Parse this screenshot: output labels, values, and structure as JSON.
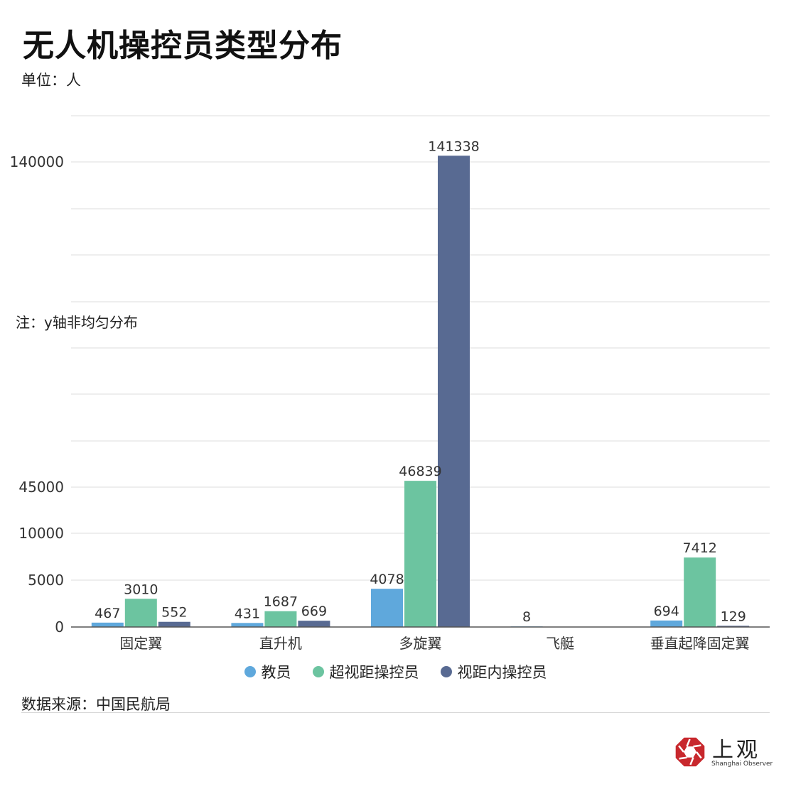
{
  "title": "无人机操控员类型分布",
  "unit": "单位：人",
  "note": "注：y轴非均匀分布",
  "source": "数据来源：中国民航局",
  "logo": {
    "name": "上观",
    "subtitle": "Shanghai Observer"
  },
  "colors": {
    "教员": "#5fa8dc",
    "超视距操控员": "#6cc4a0",
    "视距内操控员": "#586a92",
    "logo_red": "#c8282d"
  },
  "chart_data": {
    "type": "bar",
    "categories": [
      "固定翼",
      "直升机",
      "多旋翼",
      "飞艇",
      "垂直起降固定翼"
    ],
    "series": [
      {
        "name": "教员",
        "values": [
          467,
          431,
          4078,
          8,
          694
        ]
      },
      {
        "name": "超视距操控员",
        "values": [
          3010,
          1687,
          46839,
          null,
          7412
        ]
      },
      {
        "name": "视距内操控员",
        "values": [
          552,
          669,
          141338,
          null,
          129
        ]
      }
    ],
    "yticks": [
      "0",
      "5000",
      "10000",
      "45000",
      "140000"
    ],
    "y_scale": "non-uniform",
    "grid": true,
    "legend_position": "bottom"
  }
}
